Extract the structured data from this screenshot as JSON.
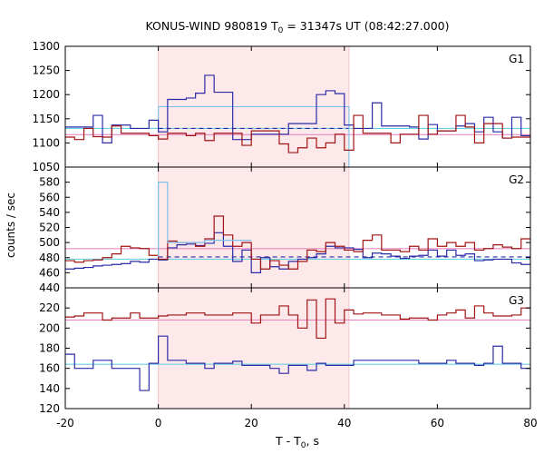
{
  "title": {
    "main": "KONUS-WIND 980819 T",
    "t0_sub": "0",
    "rest": " = 31347s UT (08:42:27.000)"
  },
  "x_label": {
    "main": "T - T",
    "sub": "0",
    "unit": ", s"
  },
  "y_label": "counts / sec",
  "chart_data": [
    {
      "type": "line",
      "panel_label": "G1",
      "xlim": [
        -20,
        80
      ],
      "ylim": [
        1050,
        1300
      ],
      "y_ticks": [
        1050,
        1100,
        1150,
        1200,
        1250,
        1300
      ],
      "x_ticks": [
        -20,
        0,
        20,
        40,
        60,
        80
      ],
      "grid": false,
      "shaded_interval": [
        0,
        41
      ],
      "bin_edges": [
        -20,
        -18,
        -16,
        -14,
        -12,
        -10,
        -8,
        -6,
        -4,
        -2,
        0,
        2,
        4,
        6,
        8,
        10,
        12,
        14,
        16,
        18,
        20,
        22,
        24,
        26,
        28,
        30,
        32,
        34,
        36,
        38,
        40,
        42,
        44,
        46,
        48,
        50,
        52,
        54,
        56,
        58,
        60,
        62,
        64,
        66,
        68,
        70,
        72,
        74,
        76,
        78,
        80
      ],
      "series": [
        {
          "color": "#2b2ba8",
          "values": [
            1133,
            1133,
            1133,
            1157,
            1100,
            1137,
            1137,
            1130,
            1130,
            1147,
            1123,
            1190,
            1190,
            1193,
            1203,
            1240,
            1205,
            1205,
            1107,
            1107,
            1118,
            1118,
            1118,
            1118,
            1140,
            1140,
            1140,
            1200,
            1208,
            1202,
            1137,
            1130,
            1130,
            1183,
            1135,
            1135,
            1135,
            1133,
            1108,
            1138,
            1125,
            1125,
            1135,
            1140,
            1123,
            1153,
            1123,
            1110,
            1153,
            1115
          ]
        },
        {
          "color": "#a01414",
          "values": [
            1112,
            1107,
            1130,
            1113,
            1112,
            1135,
            1120,
            1120,
            1120,
            1115,
            1108,
            1120,
            1120,
            1115,
            1120,
            1105,
            1120,
            1120,
            1120,
            1095,
            1125,
            1125,
            1125,
            1098,
            1080,
            1090,
            1110,
            1090,
            1100,
            1118,
            1085,
            1157,
            1120,
            1120,
            1120,
            1100,
            1118,
            1118,
            1157,
            1118,
            1125,
            1125,
            1157,
            1133,
            1100,
            1140,
            1140,
            1110,
            1112,
            1112
          ]
        }
      ],
      "background_level": {
        "color": "#6ad0e0",
        "value": 1130
      },
      "foreground_level": {
        "color": "#e88ac0",
        "value": 1117
      },
      "dashed_level": {
        "color": "#2b2ba8",
        "value": 1130,
        "x_range": [
          0,
          41
        ]
      },
      "interval_level": {
        "color": "#7ec0e8",
        "value": 1175,
        "x_range": [
          0,
          41
        ]
      }
    },
    {
      "type": "line",
      "panel_label": "G2",
      "xlim": [
        -20,
        80
      ],
      "ylim": [
        440,
        600
      ],
      "y_ticks": [
        440,
        460,
        480,
        500,
        520,
        540,
        560,
        580
      ],
      "x_ticks": [
        -20,
        0,
        20,
        40,
        60,
        80
      ],
      "grid": false,
      "shaded_interval": [
        0,
        41
      ],
      "bin_edges": [
        -20,
        -18,
        -16,
        -14,
        -12,
        -10,
        -8,
        -6,
        -4,
        -2,
        0,
        2,
        4,
        6,
        8,
        10,
        12,
        14,
        16,
        18,
        20,
        22,
        24,
        26,
        28,
        30,
        32,
        34,
        36,
        38,
        40,
        42,
        44,
        46,
        48,
        50,
        52,
        54,
        56,
        58,
        60,
        62,
        64,
        66,
        68,
        70,
        72,
        74,
        76,
        78,
        80
      ],
      "series": [
        {
          "color": "#2b2ba8",
          "values": [
            465,
            466,
            467,
            469,
            470,
            471,
            472,
            475,
            474,
            478,
            477,
            493,
            497,
            498,
            496,
            499,
            513,
            495,
            475,
            490,
            460,
            480,
            468,
            465,
            475,
            478,
            480,
            485,
            495,
            493,
            493,
            491,
            480,
            486,
            485,
            482,
            479,
            482,
            483,
            490,
            482,
            490,
            483,
            485,
            476,
            477,
            478,
            478,
            473,
            471
          ]
        },
        {
          "color": "#a01414",
          "values": [
            476,
            474,
            476,
            477,
            480,
            485,
            495,
            493,
            492,
            483,
            478,
            502,
            500,
            500,
            495,
            505,
            535,
            510,
            495,
            500,
            478,
            465,
            476,
            470,
            465,
            475,
            490,
            488,
            500,
            495,
            490,
            488,
            503,
            510,
            490,
            490,
            488,
            495,
            490,
            505,
            495,
            500,
            495,
            500,
            490,
            492,
            497,
            494,
            492,
            505
          ]
        },
        {
          "color": "#7ec0e8",
          "values": [
            null,
            null,
            null,
            null,
            null,
            null,
            null,
            null,
            null,
            null,
            580,
            500,
            500,
            500,
            500,
            503,
            503,
            503,
            503,
            503,
            null,
            null,
            null,
            null,
            null,
            null,
            null,
            null,
            null,
            null,
            null,
            null,
            null,
            null,
            null,
            null,
            null,
            null,
            null,
            null,
            null,
            null,
            null,
            null,
            null,
            null,
            null,
            null,
            null,
            null
          ]
        }
      ],
      "background_level": {
        "color": "#6ad0e0",
        "value": 478
      },
      "foreground_level": {
        "color": "#e88ac0",
        "value": 492
      },
      "dashed_level": {
        "color": "#2b2ba8",
        "value": 481,
        "x_range": [
          0,
          80
        ]
      }
    },
    {
      "type": "line",
      "panel_label": "G3",
      "xlim": [
        -20,
        80
      ],
      "ylim": [
        120,
        240
      ],
      "y_ticks": [
        120,
        140,
        160,
        180,
        200,
        220
      ],
      "x_ticks": [
        -20,
        0,
        20,
        40,
        60,
        80
      ],
      "grid": false,
      "shaded_interval": [
        0,
        41
      ],
      "bin_edges": [
        -20,
        -18,
        -16,
        -14,
        -12,
        -10,
        -8,
        -6,
        -4,
        -2,
        0,
        2,
        4,
        6,
        8,
        10,
        12,
        14,
        16,
        18,
        20,
        22,
        24,
        26,
        28,
        30,
        32,
        34,
        36,
        38,
        40,
        42,
        44,
        46,
        48,
        50,
        52,
        54,
        56,
        58,
        60,
        62,
        64,
        66,
        68,
        70,
        72,
        74,
        76,
        78,
        80
      ],
      "series": [
        {
          "color": "#2b2ba8",
          "values": [
            174,
            160,
            160,
            168,
            168,
            160,
            160,
            160,
            138,
            165,
            192,
            168,
            168,
            165,
            165,
            160,
            165,
            165,
            167,
            163,
            163,
            163,
            160,
            155,
            163,
            163,
            158,
            165,
            163,
            163,
            163,
            168,
            168,
            168,
            168,
            168,
            168,
            168,
            165,
            165,
            165,
            168,
            165,
            165,
            163,
            165,
            182,
            165,
            165,
            160
          ]
        },
        {
          "color": "#a01414",
          "values": [
            211,
            212,
            215,
            215,
            208,
            210,
            210,
            215,
            210,
            210,
            212,
            213,
            213,
            215,
            215,
            213,
            213,
            213,
            215,
            215,
            205,
            213,
            213,
            222,
            213,
            200,
            228,
            190,
            229,
            205,
            218,
            214,
            215,
            215,
            213,
            213,
            209,
            210,
            210,
            208,
            213,
            215,
            218,
            210,
            222,
            215,
            212,
            212,
            213,
            220
          ]
        }
      ],
      "background_level": {
        "color": "#6ad0e0",
        "value": 164
      },
      "foreground_level": {
        "color": "#e88ac0",
        "value": 208
      }
    }
  ]
}
